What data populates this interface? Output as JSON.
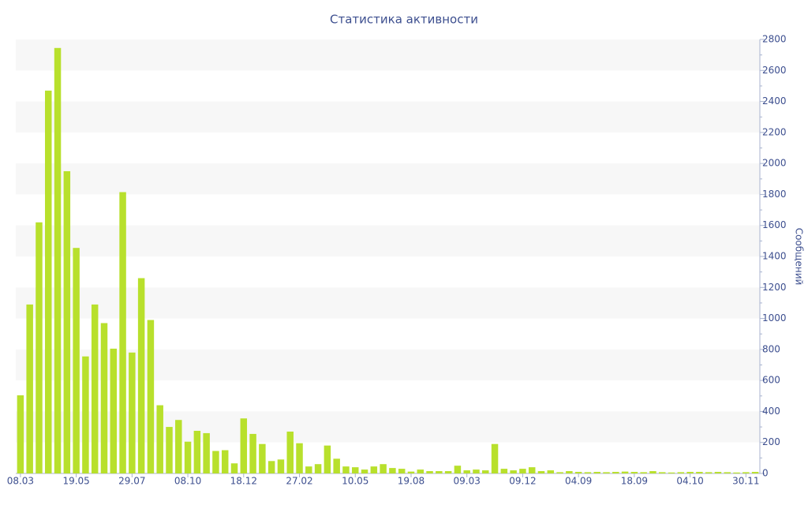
{
  "chart_data": {
    "type": "bar",
    "title": "Статистика активности",
    "y_label": "Сообщений",
    "categories": [
      "08.03",
      null,
      null,
      null,
      null,
      null,
      "19.05",
      null,
      null,
      null,
      null,
      null,
      "29.07",
      null,
      null,
      null,
      null,
      null,
      "08.10",
      null,
      null,
      null,
      null,
      null,
      "18.12",
      null,
      null,
      null,
      null,
      null,
      "27.02",
      null,
      null,
      null,
      null,
      null,
      "10.05",
      null,
      null,
      null,
      null,
      null,
      "19.08",
      null,
      null,
      null,
      null,
      null,
      "09.03",
      null,
      null,
      null,
      null,
      null,
      "09.12",
      null,
      null,
      null,
      null,
      null,
      "04.09",
      null,
      null,
      null,
      null,
      null,
      "18.09",
      null,
      null,
      null,
      null,
      null,
      "04.10",
      null,
      null,
      null,
      null,
      null,
      "30.11",
      null
    ],
    "values": [
      504,
      1090,
      1620,
      2470,
      2745,
      1950,
      1455,
      755,
      1090,
      970,
      805,
      1815,
      780,
      1260,
      990,
      440,
      300,
      345,
      205,
      275,
      260,
      145,
      150,
      65,
      355,
      255,
      190,
      80,
      90,
      270,
      195,
      45,
      60,
      180,
      95,
      45,
      40,
      25,
      45,
      60,
      35,
      30,
      12,
      25,
      15,
      15,
      15,
      50,
      20,
      25,
      20,
      190,
      30,
      20,
      30,
      40,
      15,
      20,
      8,
      15,
      10,
      8,
      10,
      8,
      10,
      12,
      10,
      8,
      15,
      8,
      6,
      8,
      10,
      10,
      8,
      10,
      8,
      6,
      8,
      10
    ],
    "color": "#b8e02c",
    "ylim": [
      0,
      2800
    ],
    "yticks": [
      0,
      200,
      400,
      600,
      800,
      1000,
      1200,
      1400,
      1600,
      1800,
      2000,
      2200,
      2400,
      2600,
      2800
    ],
    "y_axis_side": "right",
    "grid_bands": true
  }
}
